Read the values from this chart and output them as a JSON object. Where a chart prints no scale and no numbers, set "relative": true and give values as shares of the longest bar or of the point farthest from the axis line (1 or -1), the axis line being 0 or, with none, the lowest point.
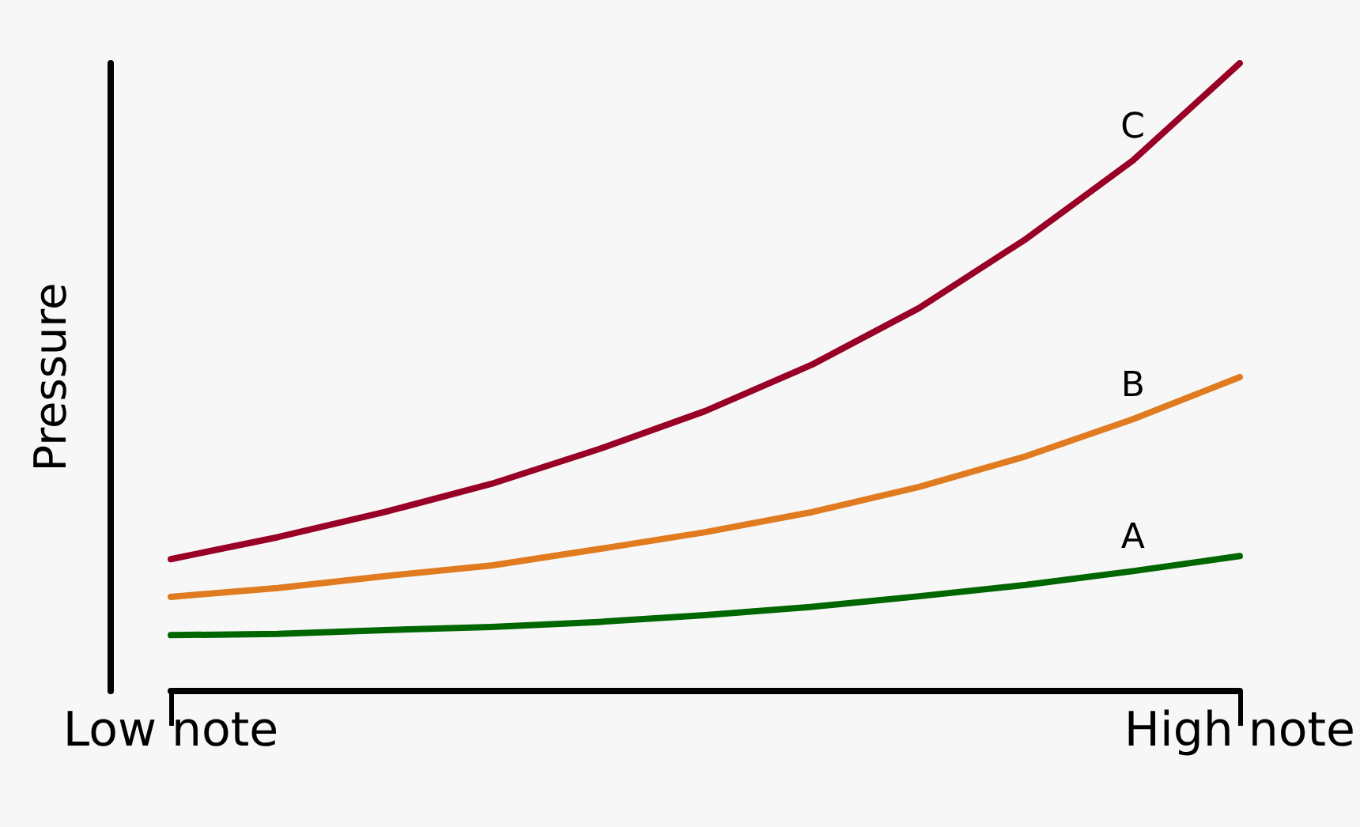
{
  "chart_data": {
    "type": "line",
    "relative": true,
    "ylabel": "Pressure",
    "categories": [
      "Low note",
      null,
      null,
      null,
      null,
      null,
      null,
      null,
      null,
      null,
      "High note"
    ],
    "series": [
      {
        "name": "C",
        "color": "#990026",
        "values": [
          0.21,
          0.245,
          0.285,
          0.33,
          0.385,
          0.446,
          0.52,
          0.61,
          0.72,
          0.845,
          1
        ]
      },
      {
        "name": "B",
        "color": "#e07b20",
        "values": [
          0.15,
          0.164,
          0.183,
          0.2,
          0.226,
          0.253,
          0.285,
          0.325,
          0.374,
          0.433,
          0.5
        ]
      },
      {
        "name": "A",
        "color": "#006600",
        "values": [
          0.089,
          0.091,
          0.097,
          0.102,
          0.11,
          0.121,
          0.134,
          0.151,
          0.169,
          0.191,
          0.215
        ]
      }
    ],
    "grid": false,
    "legend": false,
    "marker": "none",
    "line_style": "solid"
  }
}
